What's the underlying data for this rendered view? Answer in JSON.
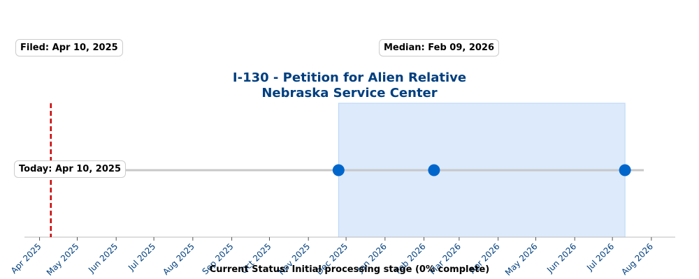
{
  "chart_data": {
    "type": "timeline",
    "title_line1": "I-130 - Petition for Alien Relative",
    "title_line2": "Nebraska Service Center",
    "x_range": [
      "2025-03-20",
      "2026-08-20"
    ],
    "x_ticks": [
      {
        "date": "2025-04-01",
        "label": "Apr 2025"
      },
      {
        "date": "2025-05-01",
        "label": "May 2025"
      },
      {
        "date": "2025-06-01",
        "label": "Jun 2025"
      },
      {
        "date": "2025-07-01",
        "label": "Jul 2025"
      },
      {
        "date": "2025-08-01",
        "label": "Aug 2025"
      },
      {
        "date": "2025-09-01",
        "label": "Sep 2025"
      },
      {
        "date": "2025-10-01",
        "label": "Oct 2025"
      },
      {
        "date": "2025-11-01",
        "label": "Nov 2025"
      },
      {
        "date": "2025-12-01",
        "label": "Dec 2025"
      },
      {
        "date": "2026-01-01",
        "label": "Jan 2026"
      },
      {
        "date": "2026-02-01",
        "label": "Feb 2026"
      },
      {
        "date": "2026-03-01",
        "label": "Mar 2026"
      },
      {
        "date": "2026-04-01",
        "label": "Apr 2026"
      },
      {
        "date": "2026-05-01",
        "label": "May 2026"
      },
      {
        "date": "2026-06-01",
        "label": "Jun 2026"
      },
      {
        "date": "2026-07-01",
        "label": "Jul 2026"
      },
      {
        "date": "2026-08-01",
        "label": "Aug 2026"
      }
    ],
    "line_range": [
      "2025-04-10",
      "2026-07-26"
    ],
    "shaded_range": [
      "2025-11-25",
      "2026-07-11"
    ],
    "points": [
      {
        "date": "2025-04-10"
      },
      {
        "date": "2025-11-25"
      },
      {
        "date": "2026-02-09"
      },
      {
        "date": "2026-07-11"
      }
    ],
    "today_date": "2025-04-10",
    "filed_label": "Filed: Apr 10, 2025",
    "median_label": "Median: Feb 09, 2026",
    "today_label": "Today: Apr 10, 2025",
    "status_text": "Current Status: Initial processing stage (0% complete)",
    "colors": {
      "title": "#003f7f",
      "point": "#0066cc",
      "today_line": "#cc0000",
      "shade": "#dceafc",
      "shade_border": "#b9d4f5",
      "line": "#c8c8c8",
      "tick_label": "#003f7f",
      "axis": "#bbbbbb"
    }
  }
}
